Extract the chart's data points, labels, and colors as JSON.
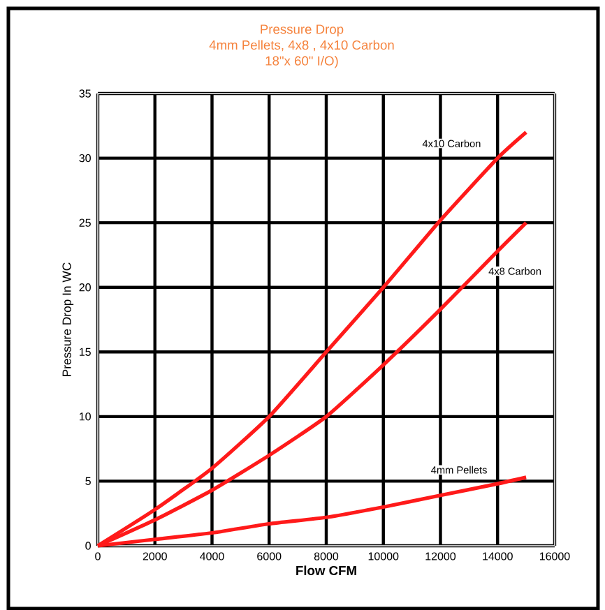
{
  "chart_data": {
    "type": "line",
    "title": "Pressure Drop",
    "subtitle": "4mm Pellets, 4x8 , 4x10 Carbon",
    "xlabel": "Flow CFM",
    "ylabel": "Pressure Drop In WC",
    "x": [
      0,
      2000,
      4000,
      6000,
      8000,
      10000,
      12000,
      14000,
      15000
    ],
    "series": [
      {
        "name": "4x10 Carbon",
        "color": "#ff1a1a",
        "values": [
          0,
          2.8,
          6,
          10,
          15,
          20,
          25.2,
          30,
          32
        ]
      },
      {
        "name": "4x8 Carbon",
        "color": "#ff1a1a",
        "values": [
          0,
          2,
          4.3,
          7,
          10,
          14,
          18.3,
          22.8,
          25
        ]
      },
      {
        "name": "4mm Pellets",
        "color": "#ff1a1a",
        "values": [
          0,
          0.5,
          1,
          1.7,
          2.2,
          3,
          3.9,
          4.8,
          5.3
        ]
      }
    ],
    "annotations": [
      "18\"x 60\" I/O)"
    ],
    "xlim": [
      0,
      16000
    ],
    "ylim": [
      0,
      35
    ],
    "xticks": [
      0,
      2000,
      4000,
      6000,
      8000,
      10000,
      12000,
      14000,
      16000
    ],
    "yticks": [
      0,
      5,
      10,
      15,
      20,
      25,
      30,
      35
    ],
    "grid": true,
    "marker": "none",
    "line_style": "solid"
  }
}
